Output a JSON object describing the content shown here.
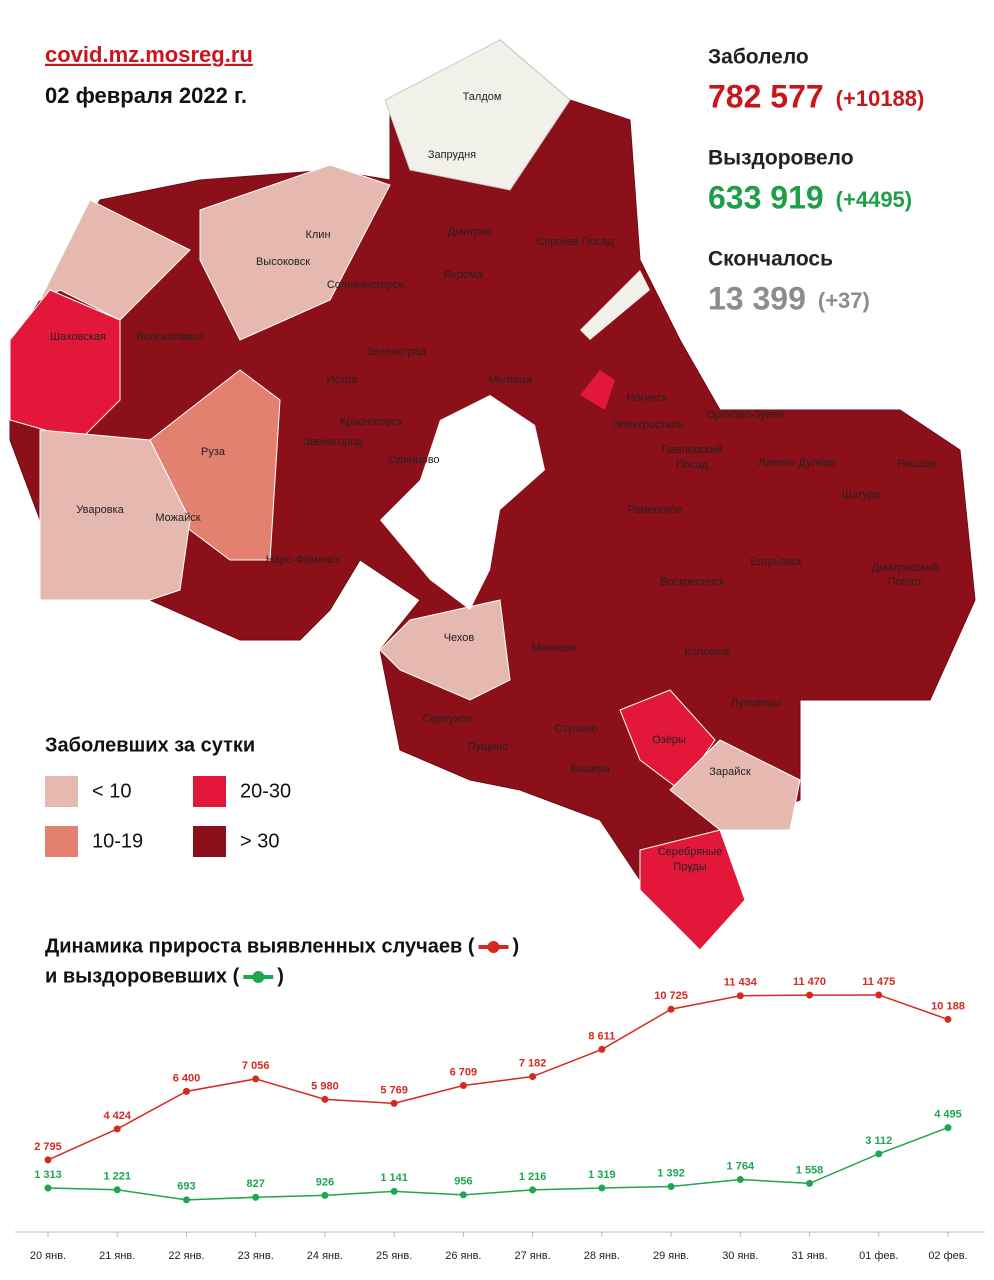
{
  "header": {
    "site": "covid.mz.mosreg.ru",
    "date": "02 февраля 2022 г."
  },
  "stats": [
    {
      "label": "Заболело",
      "value": "782 577",
      "change": "(+10188)",
      "color": "#c8161d"
    },
    {
      "label": "Выздоровело",
      "value": "633 919",
      "change": "(+4495)",
      "color": "#1f9e4a"
    },
    {
      "label": "Скончалось",
      "value": "13 399",
      "change": "(+37)",
      "color": "#8c8c8c"
    }
  ],
  "map": {
    "legend_title": "Заболевших за сутки",
    "legend": [
      {
        "label": "< 10",
        "color": "#e6b9b0"
      },
      {
        "label": "20-30",
        "color": "#e3173a"
      },
      {
        "label": "10-19",
        "color": "#e3806f"
      },
      {
        "label": "> 30",
        "color": "#8c1019"
      }
    ],
    "labels": [
      "Талдом",
      "Запрудня",
      "Клин",
      "Высоковск",
      "Дмитров",
      "Сергиев Посад",
      "Яхрома",
      "Солнечногорск",
      "Шаховская",
      "Волоколамск",
      "Зеленоград",
      "Мытищи",
      "Истра",
      "Ногинск",
      "Красногорск",
      "Электросталь",
      "Орехово-Зуево",
      "Звенигород",
      "Павловский",
      "Посад",
      "Ликино-Дулёво",
      "Одинцово",
      "Руза",
      "Рошаль",
      "Шатура",
      "Уваровка",
      "Можайск",
      "Раменское",
      "Наро-Фоминск",
      "Егорьевск",
      "Воскресенск",
      "Дмитровский",
      "Погост",
      "Чехов",
      "Михнево",
      "Коломна",
      "Серпухов",
      "Луховицы",
      "Ступино",
      "Озёры",
      "Пущино",
      "Зарайск",
      "Кашира",
      "Серебряные",
      "Пруды"
    ]
  },
  "chart_data": {
    "type": "line",
    "title": "Динамика прироста выявленных случаев (",
    "title_end": ")",
    "subtitle": "и выздоровевших (",
    "subtitle_end": ")",
    "categories": [
      "20 янв.",
      "21 янв.",
      "22 янв.",
      "23 янв.",
      "24 янв.",
      "25 янв.",
      "26 янв.",
      "27 янв.",
      "28 янв.",
      "29 янв.",
      "30 янв.",
      "31 янв.",
      "01 фев.",
      "02 фев."
    ],
    "ylim": [
      0,
      12000
    ],
    "series": [
      {
        "color": "#d42a20",
        "values": [
          2795,
          4424,
          6400,
          7056,
          5980,
          5769,
          6709,
          7182,
          8611,
          10725,
          11434,
          11470,
          11475,
          10188
        ],
        "value_labels": [
          "2 795",
          "4 424",
          "6 400",
          "7 056",
          "5 980",
          "5 769",
          "6 709",
          "7 182",
          "8 611",
          "10 725",
          "11 434",
          "11 470",
          "11 475",
          "10 188"
        ]
      },
      {
        "color": "#1fa64f",
        "values": [
          1313,
          1221,
          693,
          827,
          926,
          1141,
          956,
          1216,
          1319,
          1392,
          1764,
          1558,
          3112,
          4495
        ],
        "value_labels": [
          "1 313",
          "1 221",
          "693",
          "827",
          "926",
          "1 141",
          "956",
          "1 216",
          "1 319",
          "1 392",
          "1 764",
          "1 558",
          "3 112",
          "4 495"
        ]
      }
    ]
  }
}
